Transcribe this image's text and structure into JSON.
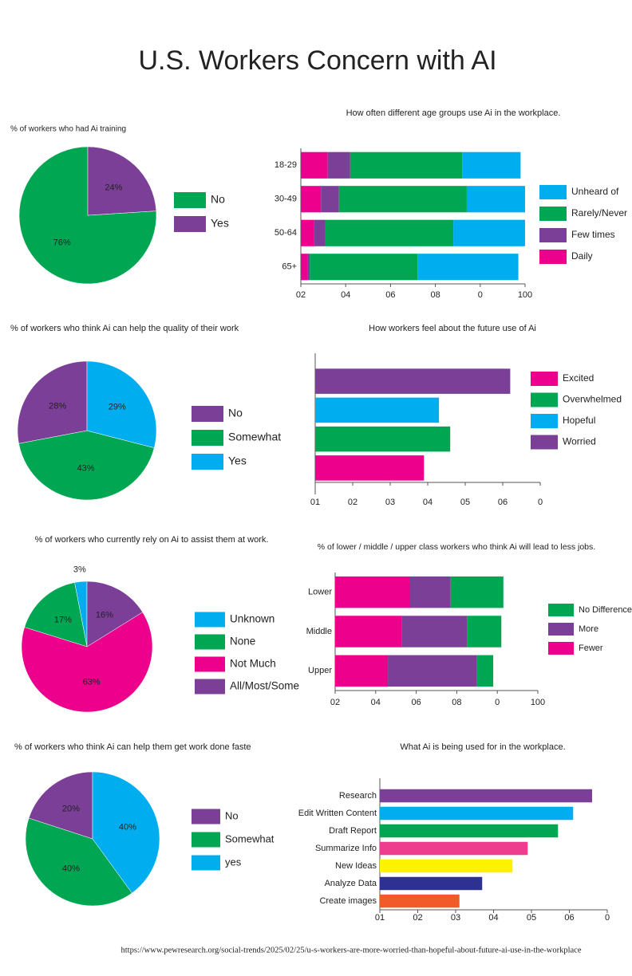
{
  "title": "U.S. Workers Concern with AI",
  "source": "https://www.pewresearch.org/social-trends/2025/02/25/u-s-workers-are-more-worried-than-hopeful-about-future-ai-use-in-the-workplace",
  "chart_data": [
    {
      "type": "pie",
      "title": "% of workers who had Ai training",
      "categories": [
        "No",
        "Yes"
      ],
      "values": [
        76,
        24
      ],
      "value_labels": [
        "76%",
        "24%"
      ],
      "colors": [
        "#00a651",
        "#7b3f98"
      ]
    },
    {
      "type": "stacked_hbar",
      "title": "How often different age groups use Ai in the workplace.",
      "categories": [
        "18-29",
        "30-49",
        "50-64",
        "65+"
      ],
      "series": [
        {
          "name": "Daily",
          "color": "#ec008c",
          "values": [
            12,
            9,
            6,
            3
          ]
        },
        {
          "name": "Few times",
          "color": "#7b3f98",
          "values": [
            10,
            8,
            5,
            1
          ]
        },
        {
          "name": "Rarely/Never",
          "color": "#00a651",
          "values": [
            50,
            57,
            57,
            48
          ]
        },
        {
          "name": "Unheard of",
          "color": "#00aeef",
          "values": [
            26,
            26,
            32,
            45
          ]
        }
      ],
      "xlim": [
        0,
        100
      ],
      "xticks": [
        {
          "value": 0,
          "label": "02"
        },
        {
          "value": 20,
          "label": "04"
        },
        {
          "value": 40,
          "label": "06"
        },
        {
          "value": 60,
          "label": "08"
        },
        {
          "value": 80,
          "label": "0"
        },
        100
      ]
    },
    {
      "type": "pie",
      "title": "% of workers who think Ai can help the quality of their work",
      "categories": [
        "No",
        "Somewhat",
        "Yes"
      ],
      "values": [
        28,
        43,
        29
      ],
      "value_labels": [
        "28%",
        "43%",
        "29%"
      ],
      "colors": [
        "#7b3f98",
        "#00a651",
        "#00aeef"
      ]
    },
    {
      "type": "hbar",
      "title": "How workers feel about the future use of Ai",
      "categories": [
        "Worried",
        "Hopeful",
        "Overwhelmed",
        "Excited"
      ],
      "values": [
        52,
        33,
        36,
        29
      ],
      "colors": [
        "#7b3f98",
        "#00aeef",
        "#00a651",
        "#ec008c"
      ],
      "legend": true,
      "xlim": [
        0,
        60
      ],
      "xticks": [
        {
          "value": 0,
          "label": "01"
        },
        {
          "value": 10,
          "label": "02"
        },
        {
          "value": 20,
          "label": "03"
        },
        {
          "value": 30,
          "label": "04"
        },
        {
          "value": 40,
          "label": "05"
        },
        {
          "value": 50,
          "label": "06"
        },
        {
          "value": 60,
          "label": "0"
        }
      ]
    },
    {
      "type": "pie",
      "title": "% of workers who currently rely on Ai to assist them at work.",
      "categories": [
        "Unknown",
        "None",
        "Not Much",
        "All/Most/Some"
      ],
      "values": [
        3,
        17,
        63,
        16
      ],
      "value_labels": [
        "3%",
        "17%",
        "63%",
        "16%"
      ],
      "colors": [
        "#00aeef",
        "#00a651",
        "#ec008c",
        "#7b3f98"
      ]
    },
    {
      "type": "stacked_hbar",
      "title": "% of lower / middle / upper class workers who think Ai will  lead to less jobs.",
      "categories": [
        "Lower",
        "Middle",
        "Upper"
      ],
      "series": [
        {
          "name": "Fewer",
          "color": "#ec008c",
          "values": [
            37,
            33,
            26
          ]
        },
        {
          "name": "More",
          "color": "#7b3f98",
          "values": [
            20,
            32,
            44
          ]
        },
        {
          "name": "No Difference",
          "color": "#00a651",
          "values": [
            26,
            17,
            8
          ]
        }
      ],
      "xlim": [
        0,
        100
      ],
      "xticks": [
        {
          "value": 0,
          "label": "02"
        },
        {
          "value": 20,
          "label": "04"
        },
        {
          "value": 40,
          "label": "06"
        },
        {
          "value": 60,
          "label": "08"
        },
        {
          "value": 80,
          "label": "0"
        },
        100
      ]
    },
    {
      "type": "pie",
      "title": "% of workers who think Ai can help them get work done faste",
      "categories": [
        "No",
        "Somewhat",
        "yes"
      ],
      "values": [
        20,
        40,
        40
      ],
      "value_labels": [
        "20%",
        "40%",
        "40%"
      ],
      "colors": [
        "#7b3f98",
        "#00a651",
        "#00aeef"
      ]
    },
    {
      "type": "hbar",
      "title": "What Ai is being used for in the workplace.",
      "categories": [
        "Research",
        "Edit Written Content",
        "Draft Report",
        "Summarize Info",
        "New Ideas",
        "Analyze Data",
        "Create images"
      ],
      "values": [
        56,
        51,
        47,
        39,
        35,
        27,
        21
      ],
      "colors": [
        "#7b3f98",
        "#00aeef",
        "#00a651",
        "#ee3d8f",
        "#fff200",
        "#2e3192",
        "#f15a29"
      ],
      "legend": false,
      "xlim": [
        0,
        60
      ],
      "xticks": [
        {
          "value": 0,
          "label": "01"
        },
        {
          "value": 10,
          "label": "02"
        },
        {
          "value": 20,
          "label": "03"
        },
        {
          "value": 30,
          "label": "04"
        },
        {
          "value": 40,
          "label": "05"
        },
        {
          "value": 50,
          "label": "06"
        },
        {
          "value": 60,
          "label": "0"
        }
      ]
    }
  ]
}
